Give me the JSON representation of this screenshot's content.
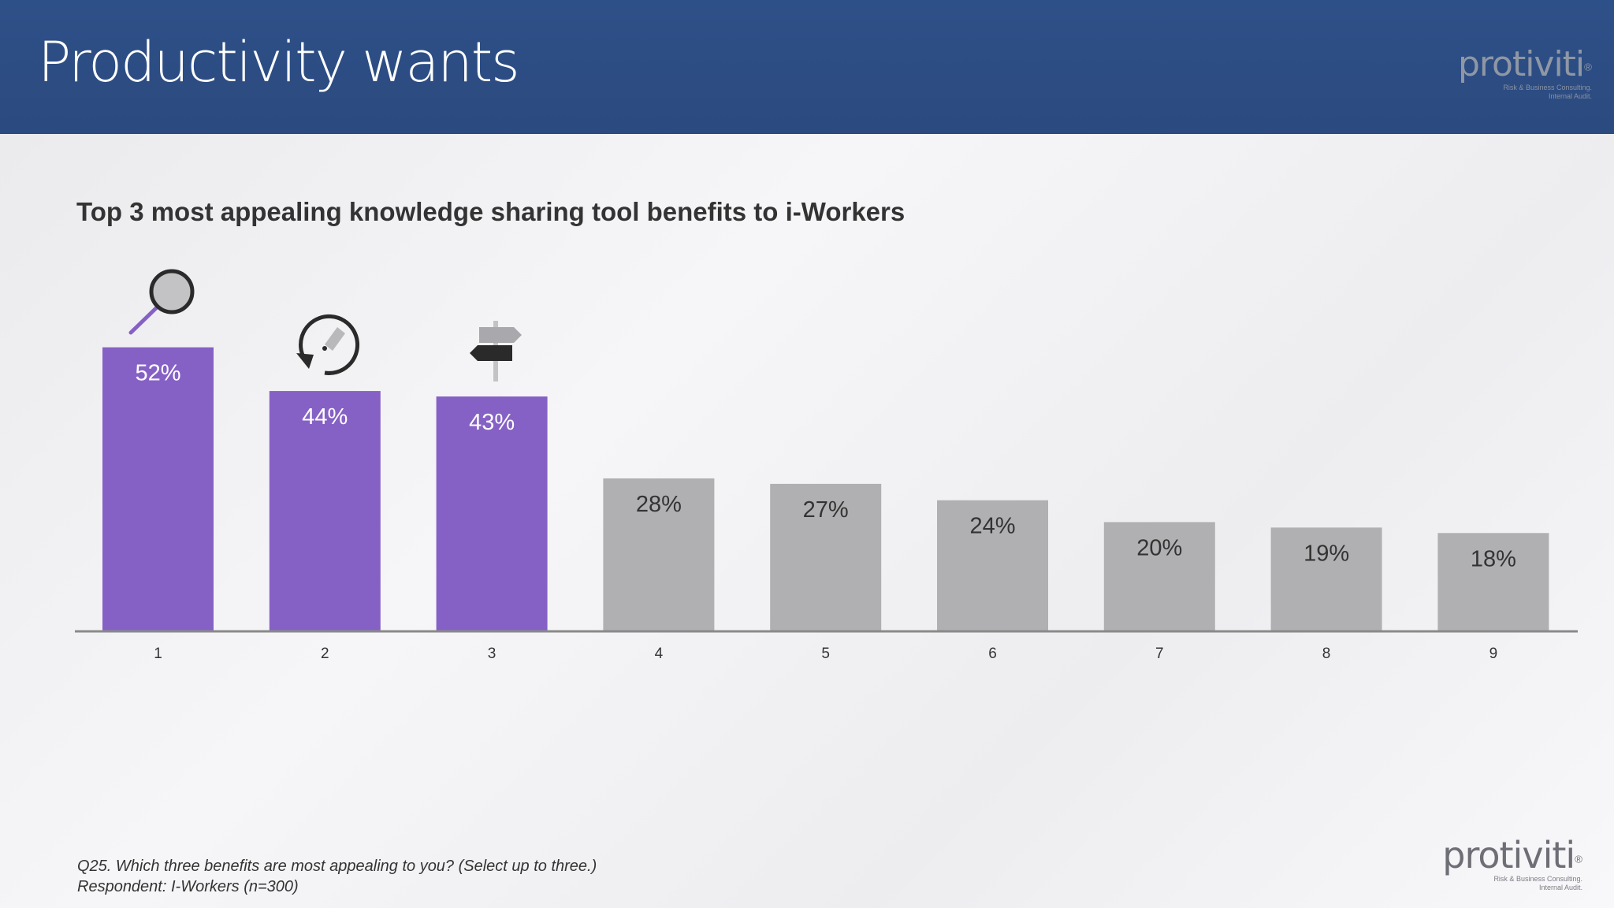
{
  "header": {
    "title": "Productivity wants"
  },
  "logo": {
    "word": "protiviti",
    "mark": "®",
    "tag1": "Risk & Business Consulting.",
    "tag2": "Internal Audit."
  },
  "chart_data": {
    "type": "bar",
    "title": "Top 3 most appealing knowledge sharing tool benefits to i-Workers",
    "categories": [
      "1",
      "2",
      "3",
      "4",
      "5",
      "6",
      "7",
      "8",
      "9"
    ],
    "values": [
      52,
      44,
      43,
      28,
      27,
      24,
      20,
      19,
      18
    ],
    "value_labels": [
      "52%",
      "44%",
      "43%",
      "28%",
      "27%",
      "24%",
      "20%",
      "19%",
      "18%"
    ],
    "highlighted": [
      true,
      true,
      true,
      false,
      false,
      false,
      false,
      false,
      false
    ],
    "icons": [
      "magnifier-icon",
      "refresh-edit-icon",
      "signpost-icon"
    ],
    "colors": {
      "highlight": "#8661c5",
      "other": "#b0afb2",
      "axis": "#8a8a8a"
    },
    "ylim": [
      0,
      60
    ],
    "xlabel": "",
    "ylabel": "",
    "grid": false
  },
  "footnote": {
    "question": "Q25. Which three benefits are most appealing to you? (Select up to three.)",
    "respondent": "Respondent: I-Workers (n=300)"
  }
}
